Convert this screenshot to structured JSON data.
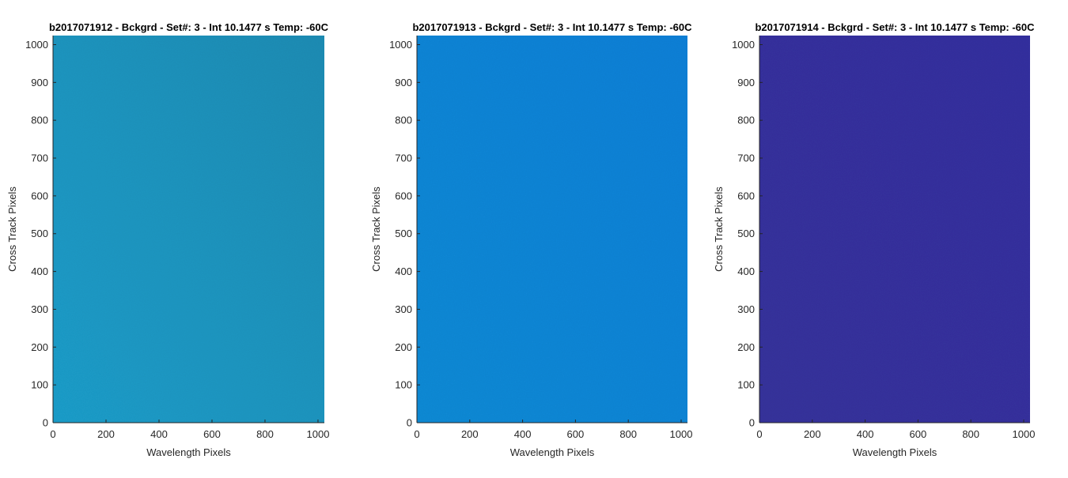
{
  "chart_data": [
    {
      "type": "heatmap",
      "title": "b2017071912 - Bckgrd - Set#: 3 - Int 10.1477 s Temp: -60C",
      "xlabel": "Wavelength Pixels",
      "ylabel": "Cross Track Pixels",
      "xlim": [
        0,
        1024
      ],
      "ylim": [
        0,
        1024
      ],
      "xticks": [
        0,
        200,
        400,
        600,
        800,
        1000
      ],
      "yticks": [
        0,
        100,
        200,
        300,
        400,
        500,
        600,
        700,
        800,
        900,
        1000
      ],
      "grid": false,
      "fill_color": "#1a9ecb",
      "edge_color": "#1f8db5"
    },
    {
      "type": "heatmap",
      "title": "b2017071913 - Bckgrd - Set#: 3 - Int 10.1477 s Temp: -60C",
      "xlabel": "Wavelength Pixels",
      "ylabel": "Cross Track Pixels",
      "xlim": [
        0,
        1024
      ],
      "ylim": [
        0,
        1024
      ],
      "xticks": [
        0,
        200,
        400,
        600,
        800,
        1000
      ],
      "yticks": [
        0,
        100,
        200,
        300,
        400,
        500,
        600,
        700,
        800,
        900,
        1000
      ],
      "grid": false,
      "fill_color": "#128bd6",
      "edge_color": "#1180d8"
    },
    {
      "type": "heatmap",
      "title": "b2017071914 - Bckgrd - Set#: 3 - Int 10.1477 s Temp: -60C",
      "xlabel": "Wavelength Pixels",
      "ylabel": "Cross Track Pixels",
      "xlim": [
        0,
        1024
      ],
      "ylim": [
        0,
        1024
      ],
      "xticks": [
        0,
        200,
        400,
        600,
        800,
        1000
      ],
      "yticks": [
        0,
        100,
        200,
        300,
        400,
        500,
        600,
        700,
        800,
        900,
        1000
      ],
      "grid": false,
      "fill_color": "#36329c",
      "edge_color": "#3430a0"
    }
  ]
}
